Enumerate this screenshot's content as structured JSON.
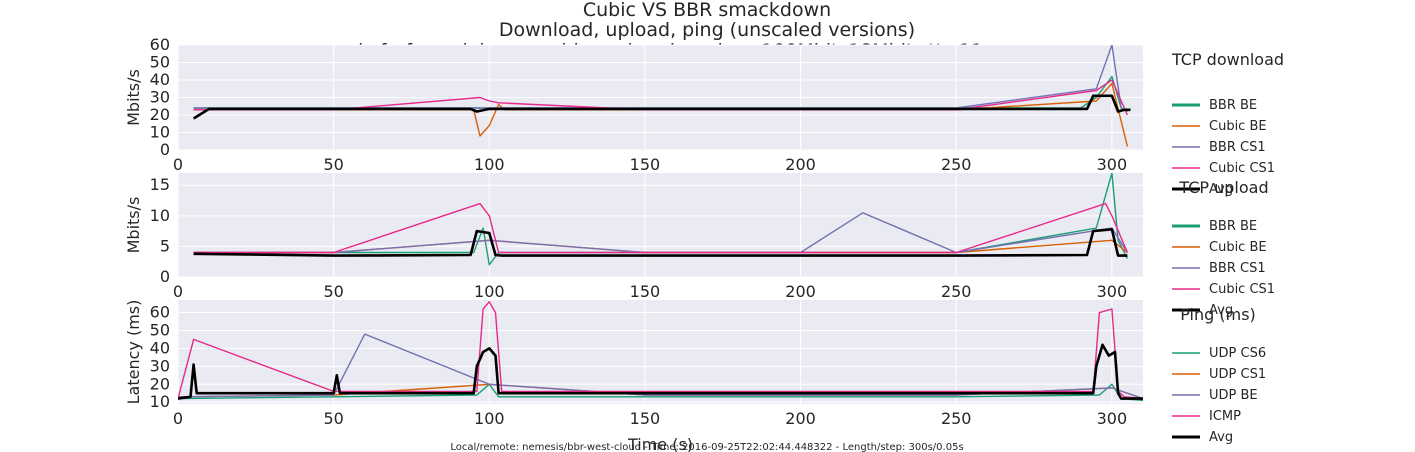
{
  "title_lines": [
    "Cubic VS BBR smackdown",
    "Download, upload, ping (unscaled versions)",
    "sch_fq-fq_codel_apu_cablemodem-long-bw=100Mbit_18Mbit-rtt=11ms-noecn"
  ],
  "footer": "Local/remote: nemesis/bbr-west-cloud - Time: 2016-09-25T22:02:44.448322 - Length/step: 300s/0.05s",
  "colors": {
    "teal": "#1b9e77",
    "orange": "#d95f02",
    "purple": "#7570b3",
    "magenta": "#e7298a",
    "black": "#000000",
    "panel_bg": "#eaeaf2",
    "grid": "#ffffff"
  },
  "chart_data": [
    {
      "type": "line",
      "title": "",
      "xlabel": "",
      "ylabel": "Mbits/s",
      "xlim": [
        0,
        310
      ],
      "ylim": [
        0,
        60
      ],
      "xticks": [
        0,
        50,
        100,
        150,
        200,
        250,
        300
      ],
      "yticks": [
        0,
        10,
        20,
        30,
        40,
        50,
        60
      ],
      "grid": true,
      "legend": {
        "placement": "right",
        "title": "TCP download",
        "entries": [
          "BBR BE",
          "Cubic BE",
          "BBR CS1",
          "Cubic CS1",
          "Avg"
        ]
      },
      "series": [
        {
          "name": "BBR BE",
          "color": "#1b9e77",
          "x": [
            5,
            10,
            15,
            25,
            35,
            50,
            75,
            95,
            100,
            110,
            150,
            200,
            250,
            290,
            295,
            300,
            303,
            305
          ],
          "y": [
            24,
            24,
            24,
            24,
            24,
            24,
            24,
            24,
            24,
            24,
            24,
            24,
            24,
            24,
            30,
            42,
            24,
            22
          ]
        },
        {
          "name": "Cubic BE",
          "color": "#d95f02",
          "x": [
            5,
            50,
            95,
            97,
            100,
            103,
            105,
            150,
            200,
            250,
            295,
            300,
            305
          ],
          "y": [
            23,
            23,
            23,
            8,
            14,
            26,
            23,
            23,
            23,
            23,
            28,
            38,
            2
          ]
        },
        {
          "name": "BBR CS1",
          "color": "#7570b3",
          "x": [
            5,
            50,
            100,
            150,
            200,
            250,
            295,
            300,
            303
          ],
          "y": [
            24,
            24,
            24,
            24,
            24,
            24,
            35,
            60,
            24
          ]
        },
        {
          "name": "Cubic CS1",
          "color": "#e7298a",
          "x": [
            5,
            50,
            97,
            100,
            103,
            150,
            200,
            250,
            295,
            300,
            305
          ],
          "y": [
            23,
            23,
            30,
            28,
            27,
            23,
            23,
            23,
            34,
            40,
            20
          ]
        },
        {
          "name": "Avg",
          "color": "#000000",
          "x": [
            5,
            10,
            50,
            94,
            96,
            100,
            104,
            150,
            200,
            250,
            292,
            294,
            300,
            302,
            304,
            306
          ],
          "y": [
            18,
            23.5,
            23.5,
            23.5,
            22,
            23.5,
            23.5,
            23.5,
            23.5,
            23.5,
            23.5,
            31,
            31,
            22,
            23,
            23
          ]
        }
      ]
    },
    {
      "type": "line",
      "title": "",
      "xlabel": "",
      "ylabel": "Mbits/s",
      "xlim": [
        0,
        310
      ],
      "ylim": [
        0,
        17
      ],
      "xticks": [
        0,
        50,
        100,
        150,
        200,
        250,
        300
      ],
      "yticks": [
        0,
        5,
        10,
        15
      ],
      "grid": true,
      "legend": {
        "placement": "right",
        "title": "TCP upload",
        "entries": [
          "BBR BE",
          "Cubic BE",
          "BBR CS1",
          "Cubic CS1",
          "Avg"
        ]
      },
      "series": [
        {
          "name": "BBR BE",
          "color": "#1b9e77",
          "x": [
            5,
            50,
            95,
            98,
            100,
            103,
            150,
            200,
            250,
            295,
            300,
            302,
            305
          ],
          "y": [
            4,
            4,
            4,
            8,
            2,
            4,
            4,
            4,
            4,
            8,
            17,
            6,
            3
          ]
        },
        {
          "name": "Cubic BE",
          "color": "#d95f02",
          "x": [
            5,
            50,
            100,
            150,
            200,
            250,
            300,
            305
          ],
          "y": [
            4,
            4,
            6,
            4,
            4,
            4,
            6,
            4
          ]
        },
        {
          "name": "BBR CS1",
          "color": "#7570b3",
          "x": [
            5,
            50,
            100,
            150,
            200,
            220,
            250,
            300,
            305
          ],
          "y": [
            4,
            4,
            6,
            4,
            4,
            10.5,
            4,
            8,
            4
          ]
        },
        {
          "name": "Cubic CS1",
          "color": "#e7298a",
          "x": [
            5,
            50,
            97,
            100,
            103,
            150,
            200,
            250,
            298,
            300,
            305
          ],
          "y": [
            4,
            4,
            12,
            10,
            4,
            4,
            4,
            4,
            12,
            10,
            4
          ]
        },
        {
          "name": "Avg",
          "color": "#000000",
          "x": [
            5,
            50,
            94,
            96,
            100,
            102,
            104,
            150,
            200,
            250,
            292,
            294,
            300,
            302,
            305
          ],
          "y": [
            3.8,
            3.5,
            3.6,
            7.5,
            7.2,
            3.6,
            3.5,
            3.5,
            3.5,
            3.5,
            3.6,
            7.5,
            7.8,
            3.5,
            3.5
          ]
        }
      ]
    },
    {
      "type": "line",
      "title": "",
      "xlabel": "Time (s)",
      "ylabel": "Latency (ms)",
      "xlim": [
        0,
        310
      ],
      "ylim": [
        9,
        67
      ],
      "xticks": [
        0,
        50,
        100,
        150,
        200,
        250,
        300
      ],
      "yticks": [
        10,
        20,
        30,
        40,
        50,
        60
      ],
      "grid": true,
      "legend": {
        "placement": "right",
        "title": "Ping (ms)",
        "entries": [
          "UDP CS6",
          "UDP CS1",
          "UDP BE",
          "ICMP",
          "Avg"
        ]
      },
      "series": [
        {
          "name": "UDP CS6",
          "color": "#1b9e77",
          "x": [
            0,
            50,
            96,
            100,
            103,
            150,
            200,
            250,
            296,
            300,
            303,
            310
          ],
          "y": [
            12,
            13,
            14,
            20,
            13,
            13,
            13,
            13,
            14,
            20,
            12,
            11
          ]
        },
        {
          "name": "UDP CS1",
          "color": "#d95f02",
          "x": [
            0,
            50,
            100,
            150,
            200,
            250,
            300,
            310
          ],
          "y": [
            13,
            14,
            20,
            14,
            14,
            14,
            18,
            12
          ]
        },
        {
          "name": "UDP BE",
          "color": "#7570b3",
          "x": [
            0,
            50,
            60,
            100,
            150,
            200,
            250,
            300,
            310
          ],
          "y": [
            13,
            14,
            48,
            20,
            14,
            14,
            14,
            18,
            12
          ]
        },
        {
          "name": "ICMP",
          "color": "#e7298a",
          "x": [
            0,
            5,
            50,
            96,
            98,
            100,
            102,
            104,
            150,
            200,
            250,
            294,
            296,
            300,
            302,
            304,
            310
          ],
          "y": [
            12,
            45,
            16,
            16,
            62,
            66,
            60,
            16,
            16,
            16,
            16,
            16,
            60,
            62,
            16,
            13,
            12
          ]
        },
        {
          "name": "Avg",
          "color": "#000000",
          "x": [
            0,
            4,
            5,
            6,
            50,
            51,
            52,
            95,
            96,
            98,
            100,
            102,
            103,
            150,
            200,
            250,
            294,
            295,
            297,
            299,
            301,
            302,
            303,
            305,
            310
          ],
          "y": [
            12,
            13,
            31,
            15,
            15,
            25,
            15,
            15,
            30,
            38,
            40,
            36,
            15,
            15,
            15,
            15,
            15,
            30,
            42,
            36,
            38,
            15,
            12,
            12,
            12
          ]
        }
      ]
    }
  ]
}
